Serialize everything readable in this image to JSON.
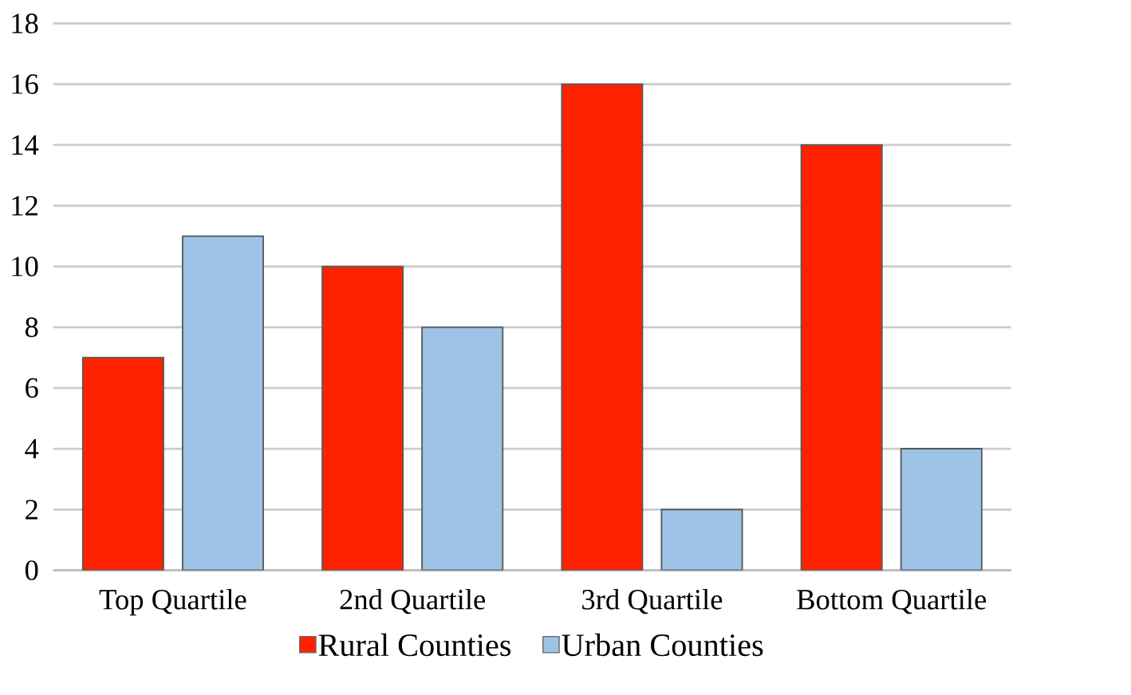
{
  "chart_data": {
    "type": "bar",
    "categories": [
      "Top Quartile",
      "2nd Quartile",
      "3rd Quartile",
      "Bottom Quartile"
    ],
    "series": [
      {
        "name": "Rural Counties",
        "color": "#ff2200",
        "values": [
          7,
          10,
          16,
          14
        ]
      },
      {
        "name": "Urban Counties",
        "color": "#9dc3e6",
        "values": [
          11,
          8,
          2,
          4
        ]
      }
    ],
    "ylim": [
      0,
      18
    ],
    "yticks": [
      0,
      2,
      4,
      6,
      8,
      10,
      12,
      14,
      16,
      18
    ],
    "grid": "y",
    "legend": "bottom"
  }
}
